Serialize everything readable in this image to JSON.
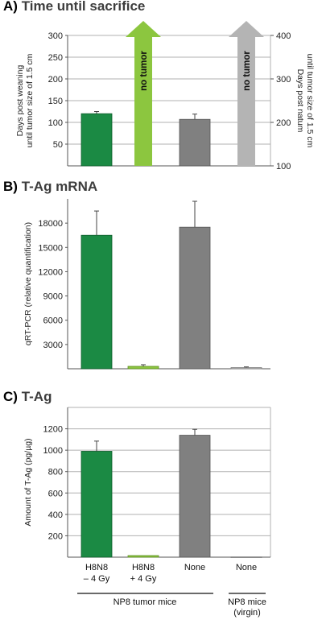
{
  "colors": {
    "dark_green": "#1b8a44",
    "light_green": "#8cc63f",
    "dark_gray": "#808080",
    "light_gray": "#b4b4b4",
    "grid": "#b0b0b0"
  },
  "chart_data": [
    {
      "type": "bar",
      "letter": "A)",
      "title": "Time until sacrifice",
      "ylabel": [
        "Days post weaning",
        "until tumor size of 1.5 cm"
      ],
      "y2label": [
        "Days post natum",
        "until tumor size of 1.5 cm"
      ],
      "ylim": [
        0,
        300
      ],
      "y2lim": [
        100,
        400
      ],
      "yticks": [
        "50",
        "100",
        "150",
        "200",
        "250",
        "300"
      ],
      "y2ticks": [
        "100",
        "200",
        "300",
        "400"
      ],
      "categories": [
        "H8N8 – 4 Gy",
        "H8N8 + 4 Gy",
        "None",
        "None (virgin)"
      ],
      "values": [
        120,
        null,
        107,
        null
      ],
      "errors": [
        5,
        null,
        12,
        null
      ],
      "arrow_label": "no tumor",
      "grid": true
    },
    {
      "type": "bar",
      "letter": "B)",
      "title": "T-Ag mRNA",
      "ylabel": [
        "qRT-PCR (relative quantification)"
      ],
      "ylim": [
        0,
        21000
      ],
      "yticks": [
        "3000",
        "6000",
        "9000",
        "12000",
        "15000",
        "18000"
      ],
      "categories": [
        "H8N8 – 4 Gy",
        "H8N8 + 4 Gy",
        "None",
        "None (virgin)"
      ],
      "values": [
        16500,
        300,
        17500,
        150
      ],
      "errors": [
        3000,
        200,
        3200,
        80
      ],
      "grid": false
    },
    {
      "type": "bar",
      "letter": "C)",
      "title": "T-Ag",
      "ylabel": [
        "Amount of T-Ag (pg/µg)"
      ],
      "ylim": [
        0,
        1400
      ],
      "yticks": [
        "200",
        "400",
        "600",
        "800",
        "1000",
        "1200"
      ],
      "categories": [
        "H8N8 – 4 Gy",
        "H8N8 + 4 Gy",
        "None",
        "None (virgin)"
      ],
      "values": [
        990,
        15,
        1140,
        3
      ],
      "errors": [
        95,
        0,
        55,
        0
      ],
      "grid": true
    }
  ],
  "x_labels": [
    [
      "H8N8",
      "– 4 Gy"
    ],
    [
      "H8N8",
      "+ 4 Gy"
    ],
    [
      "None"
    ],
    [
      "None"
    ]
  ],
  "groups": {
    "tumor": "NP8 tumor mice",
    "virgin": [
      "NP8 mice",
      "(virgin)"
    ]
  }
}
